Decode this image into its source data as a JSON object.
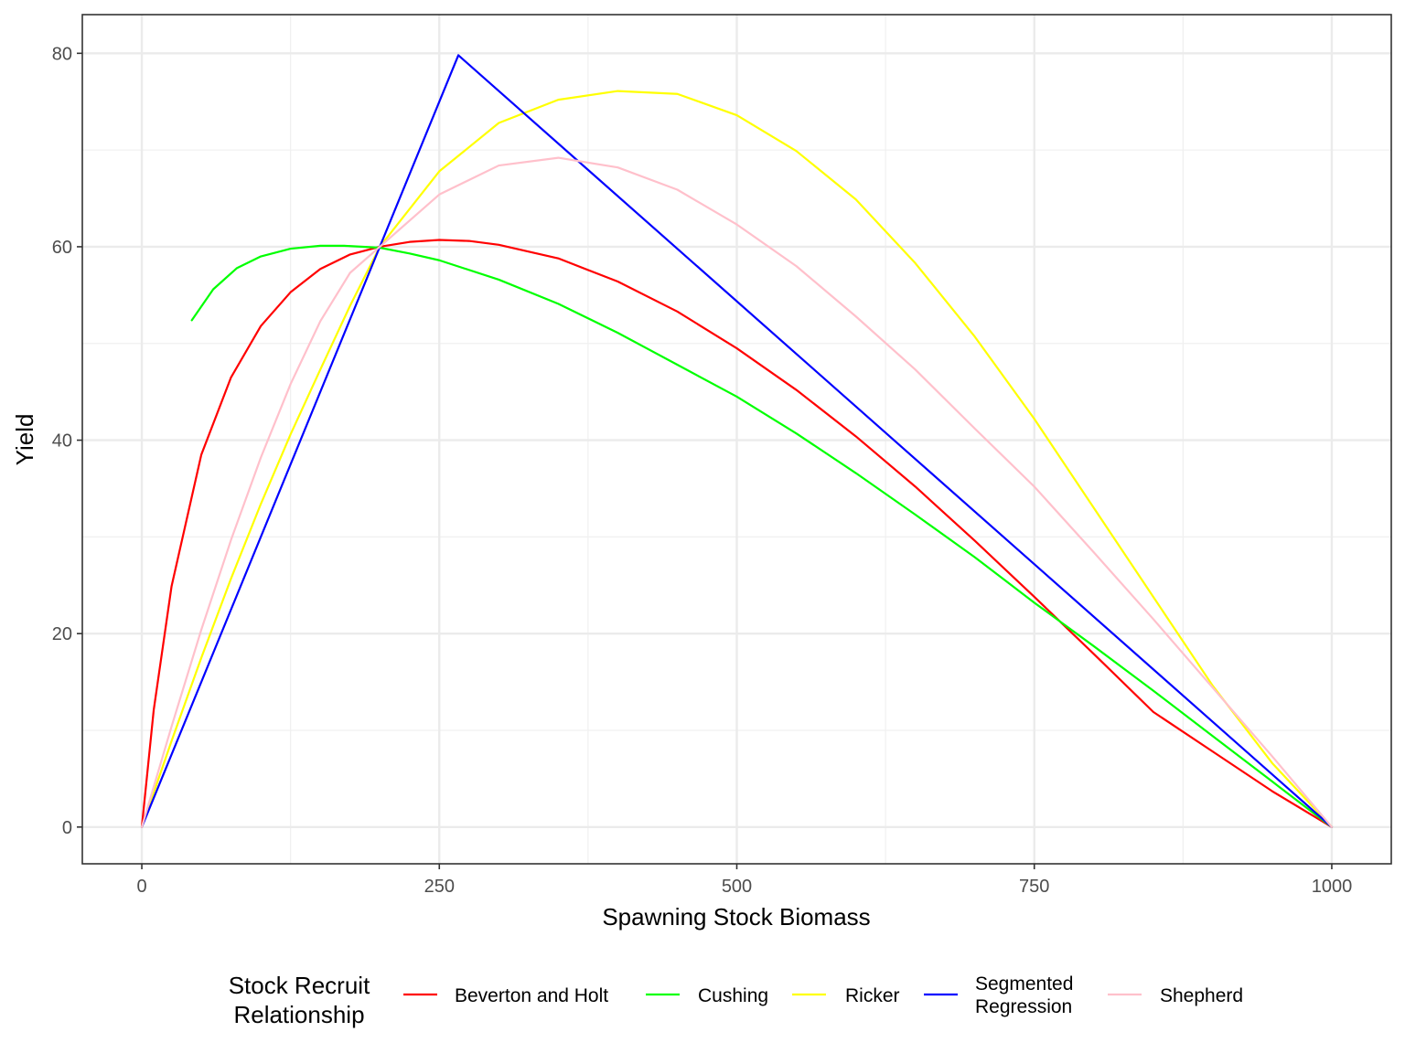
{
  "chart_data": {
    "type": "line",
    "title": "",
    "xlabel": "Spawning Stock Biomass",
    "ylabel": "Yield",
    "xlim": [
      -50,
      1050
    ],
    "ylim": [
      -3.8,
      84
    ],
    "x_ticks": [
      0,
      250,
      500,
      750,
      1000
    ],
    "y_ticks": [
      0,
      20,
      40,
      60,
      80
    ],
    "x_tick_labels": [
      "0",
      "250",
      "500",
      "750",
      "1000"
    ],
    "y_tick_labels": [
      "0",
      "20",
      "40",
      "60",
      "80"
    ],
    "grid": true,
    "legend": {
      "title_lines": [
        "Stock Recruit",
        "Relationship"
      ],
      "position": "bottom"
    },
    "series": [
      {
        "name": "Beverton and Holt",
        "label_lines": [
          "Beverton and Holt"
        ],
        "color": "#ff0000",
        "points": [
          [
            0,
            0
          ],
          [
            10,
            12.1
          ],
          [
            25,
            24.9
          ],
          [
            50,
            38.5
          ],
          [
            75,
            46.5
          ],
          [
            100,
            51.8
          ],
          [
            125,
            55.3
          ],
          [
            150,
            57.7
          ],
          [
            175,
            59.2
          ],
          [
            200,
            60.0
          ],
          [
            225,
            60.5
          ],
          [
            250,
            60.7
          ],
          [
            275,
            60.6
          ],
          [
            300,
            60.2
          ],
          [
            350,
            58.8
          ],
          [
            400,
            56.4
          ],
          [
            450,
            53.3
          ],
          [
            500,
            49.5
          ],
          [
            550,
            45.2
          ],
          [
            600,
            40.4
          ],
          [
            650,
            35.2
          ],
          [
            700,
            29.6
          ],
          [
            750,
            23.8
          ],
          [
            800,
            17.9
          ],
          [
            850,
            11.9
          ],
          [
            900,
            7.8
          ],
          [
            950,
            3.7
          ],
          [
            1000,
            0
          ]
        ]
      },
      {
        "name": "Cushing",
        "label_lines": [
          "Cushing"
        ],
        "color": "#00ff00",
        "points": [
          [
            42,
            52.4
          ],
          [
            60,
            55.6
          ],
          [
            80,
            57.8
          ],
          [
            100,
            59.0
          ],
          [
            125,
            59.8
          ],
          [
            150,
            60.1
          ],
          [
            170,
            60.1
          ],
          [
            200,
            59.9
          ],
          [
            225,
            59.3
          ],
          [
            250,
            58.6
          ],
          [
            300,
            56.6
          ],
          [
            350,
            54.1
          ],
          [
            400,
            51.1
          ],
          [
            450,
            47.8
          ],
          [
            500,
            44.5
          ],
          [
            550,
            40.7
          ],
          [
            600,
            36.6
          ],
          [
            650,
            32.3
          ],
          [
            700,
            27.9
          ],
          [
            750,
            23.2
          ],
          [
            800,
            18.7
          ],
          [
            850,
            14.1
          ],
          [
            900,
            9.4
          ],
          [
            950,
            4.7
          ],
          [
            1000,
            0
          ]
        ]
      },
      {
        "name": "Ricker",
        "label_lines": [
          "Ricker"
        ],
        "color": "#ffff00",
        "points": [
          [
            0,
            0
          ],
          [
            25,
            8.9
          ],
          [
            50,
            17.5
          ],
          [
            75,
            25.7
          ],
          [
            100,
            33.4
          ],
          [
            125,
            40.6
          ],
          [
            150,
            47.3
          ],
          [
            175,
            53.9
          ],
          [
            200,
            60.0
          ],
          [
            250,
            67.8
          ],
          [
            300,
            72.8
          ],
          [
            350,
            75.2
          ],
          [
            400,
            76.1
          ],
          [
            450,
            75.8
          ],
          [
            500,
            73.6
          ],
          [
            550,
            69.9
          ],
          [
            600,
            64.9
          ],
          [
            650,
            58.3
          ],
          [
            700,
            50.7
          ],
          [
            750,
            42.2
          ],
          [
            800,
            33.0
          ],
          [
            850,
            23.8
          ],
          [
            900,
            14.6
          ],
          [
            950,
            6.6
          ],
          [
            1000,
            0
          ]
        ]
      },
      {
        "name": "Segmented Regression",
        "label_lines": [
          "Segmented",
          "Regression"
        ],
        "color": "#0000ff",
        "points": [
          [
            0,
            0
          ],
          [
            266,
            79.8
          ],
          [
            1000,
            0
          ]
        ]
      },
      {
        "name": "Shepherd",
        "label_lines": [
          "Shepherd"
        ],
        "color": "#ffc0cb",
        "points": [
          [
            0,
            0
          ],
          [
            25,
            10.4
          ],
          [
            50,
            20.4
          ],
          [
            75,
            29.7
          ],
          [
            100,
            38.2
          ],
          [
            125,
            45.8
          ],
          [
            150,
            52.3
          ],
          [
            175,
            57.3
          ],
          [
            200,
            60.0
          ],
          [
            250,
            65.4
          ],
          [
            300,
            68.4
          ],
          [
            350,
            69.2
          ],
          [
            400,
            68.2
          ],
          [
            450,
            65.9
          ],
          [
            500,
            62.3
          ],
          [
            550,
            58.0
          ],
          [
            600,
            52.8
          ],
          [
            650,
            47.3
          ],
          [
            700,
            41.2
          ],
          [
            750,
            35.2
          ],
          [
            800,
            28.4
          ],
          [
            850,
            21.5
          ],
          [
            900,
            14.4
          ],
          [
            950,
            7.3
          ],
          [
            1000,
            0
          ]
        ]
      }
    ]
  }
}
